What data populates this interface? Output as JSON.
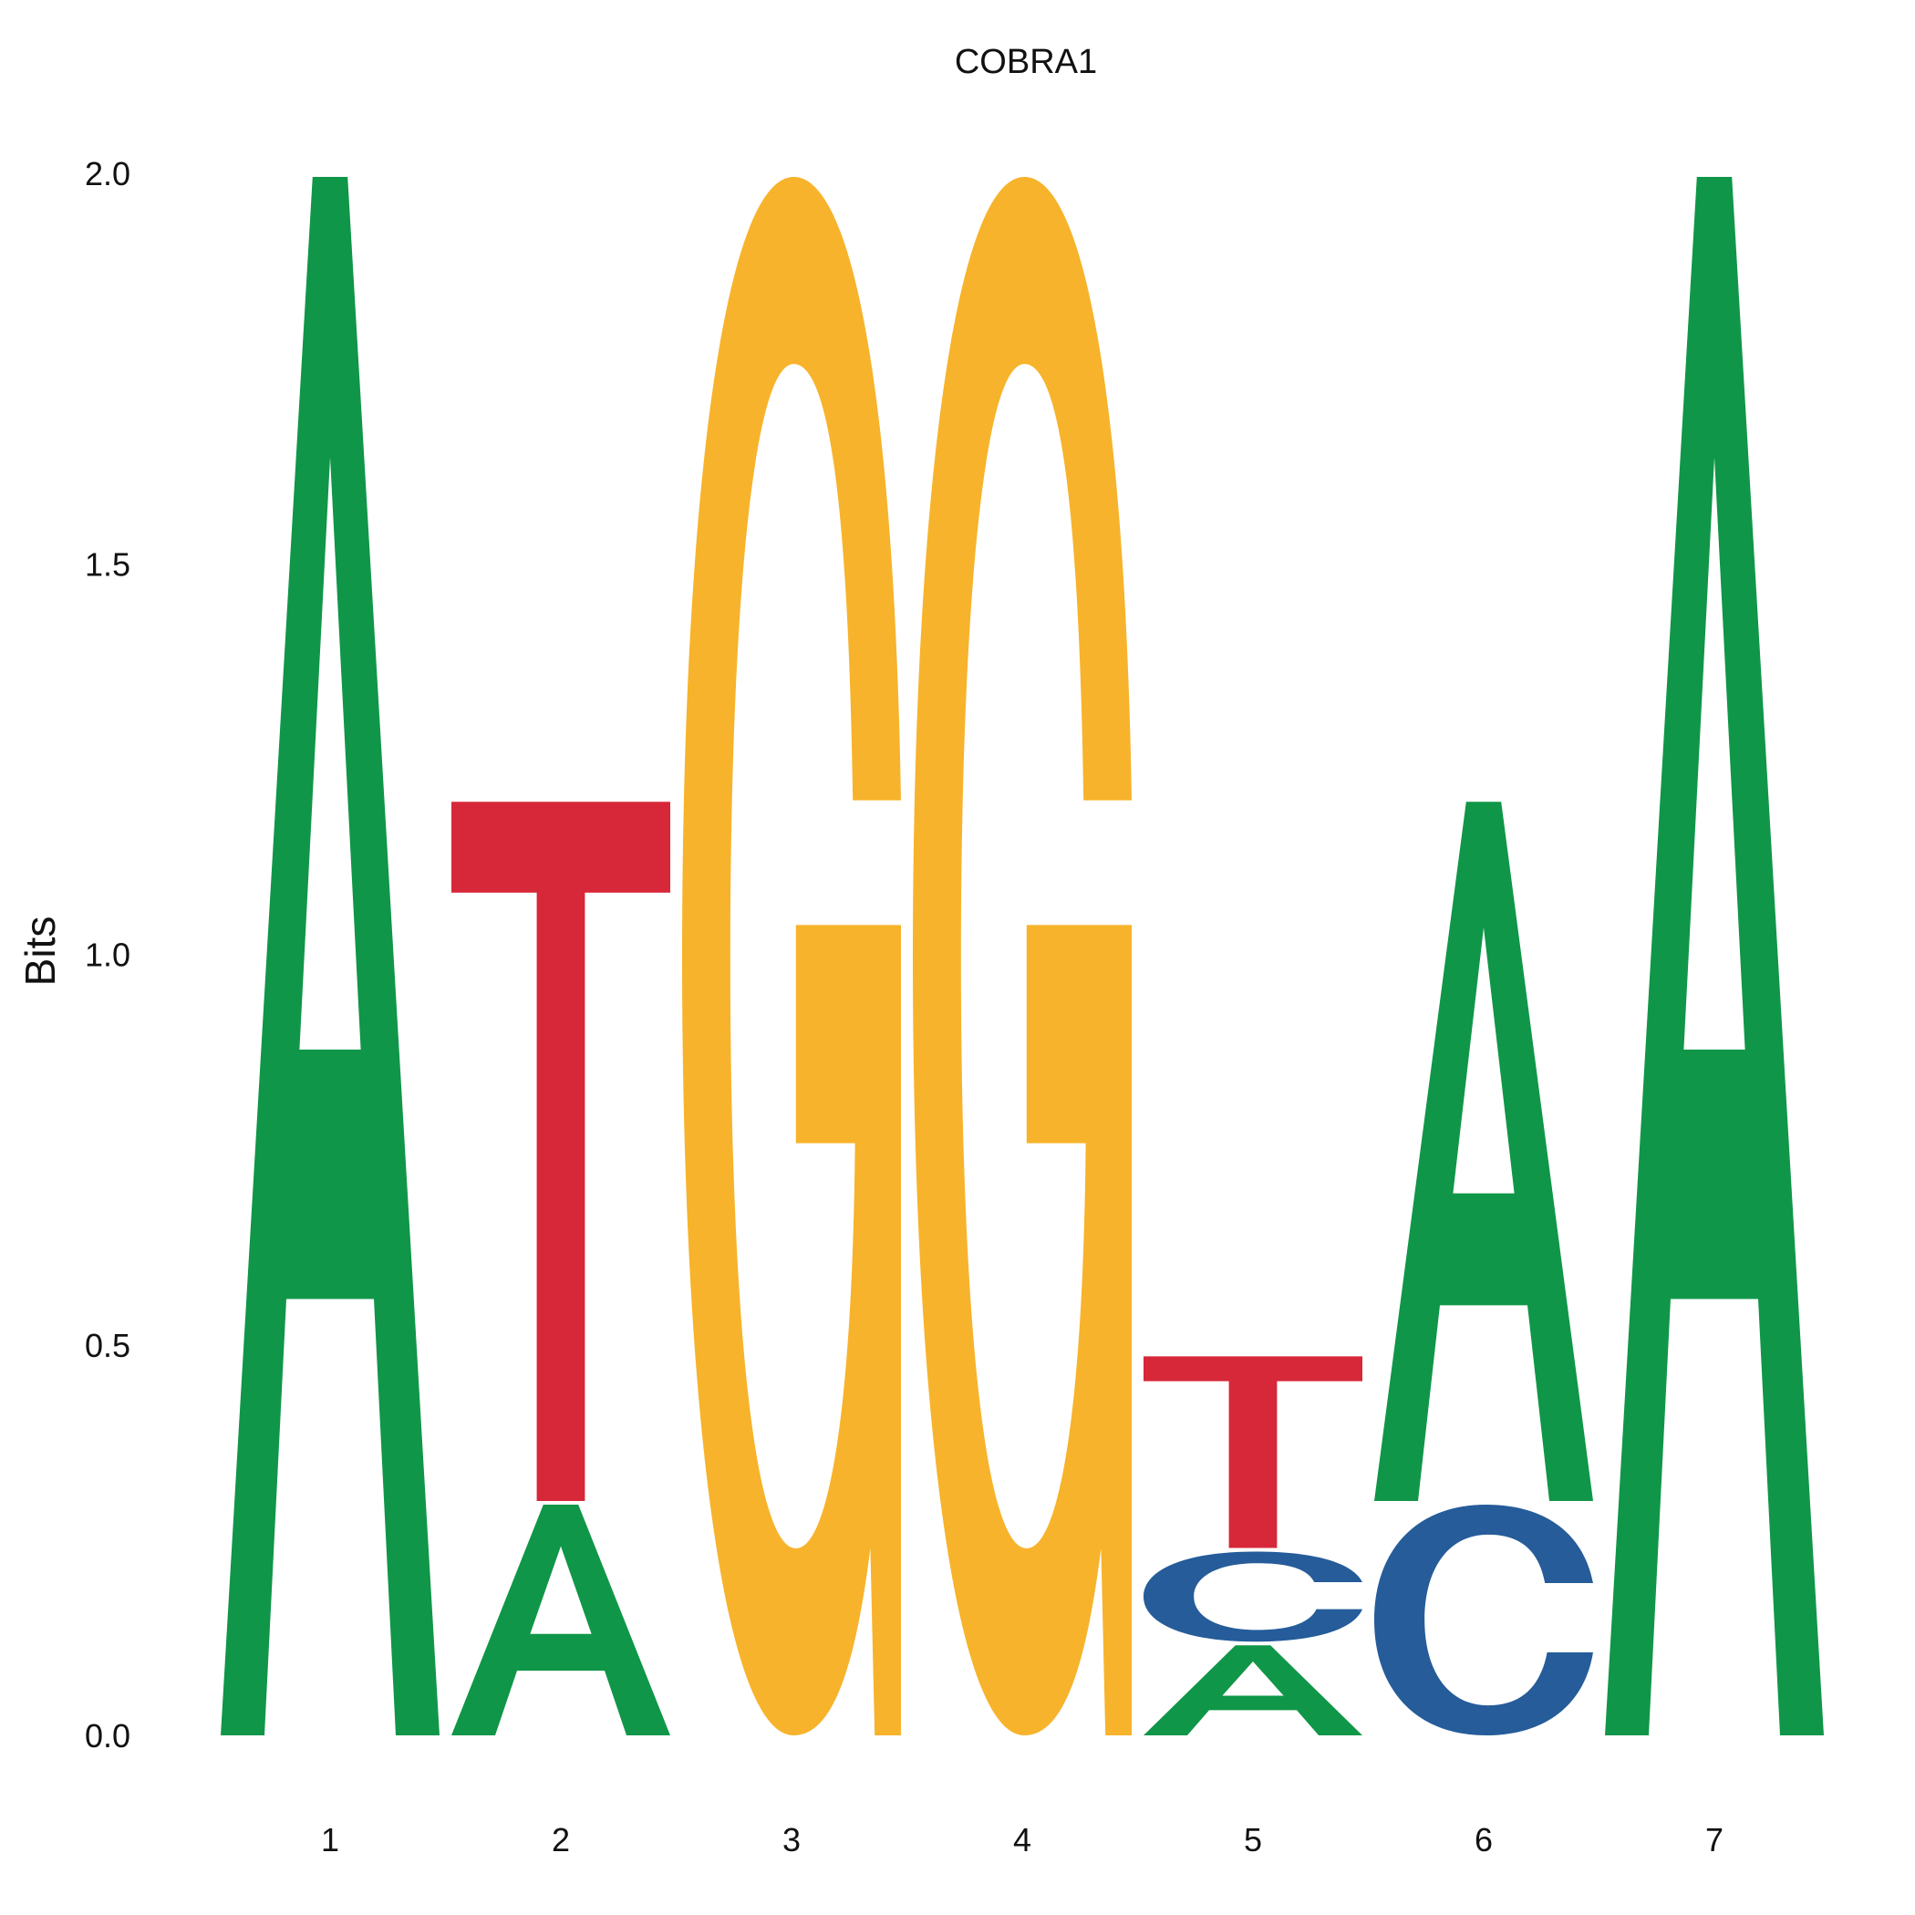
{
  "chart_data": {
    "type": "sequence-logo",
    "title": "COBRA1",
    "ylabel": "Bits",
    "ylim": [
      0,
      2
    ],
    "yticks": [
      "0.0",
      "0.5",
      "1.0",
      "1.5",
      "2.0"
    ],
    "positions": [
      "1",
      "2",
      "3",
      "4",
      "5",
      "6",
      "7"
    ],
    "colors": {
      "A": "#109648",
      "C": "#255C99",
      "G": "#F7B32B",
      "T": "#D62839"
    },
    "stacks": [
      [
        {
          "letter": "A",
          "bits": 2.0
        }
      ],
      [
        {
          "letter": "A",
          "bits": 0.3
        },
        {
          "letter": "T",
          "bits": 0.9
        }
      ],
      [
        {
          "letter": "G",
          "bits": 2.0
        }
      ],
      [
        {
          "letter": "G",
          "bits": 2.0
        }
      ],
      [
        {
          "letter": "A",
          "bits": 0.12
        },
        {
          "letter": "C",
          "bits": 0.12
        },
        {
          "letter": "T",
          "bits": 0.25
        }
      ],
      [
        {
          "letter": "C",
          "bits": 0.3
        },
        {
          "letter": "A",
          "bits": 0.9
        }
      ],
      [
        {
          "letter": "A",
          "bits": 2.0
        }
      ]
    ]
  }
}
